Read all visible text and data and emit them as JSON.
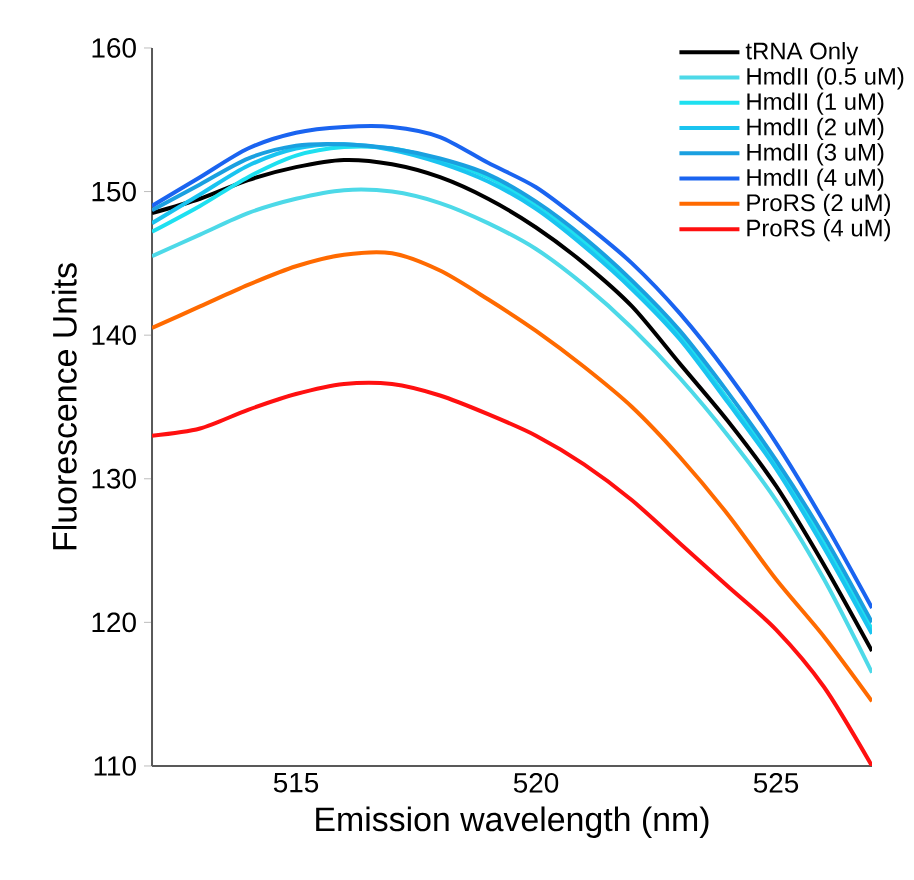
{
  "chart_data": {
    "type": "line",
    "xlabel": "Emission wavelength (nm)",
    "ylabel": "Fluorescence Units",
    "x": [
      512,
      513,
      514,
      515,
      516,
      517,
      518,
      519,
      520,
      521,
      522,
      523,
      524,
      525,
      526,
      527
    ],
    "xlim": [
      512,
      527
    ],
    "xticks": [
      515,
      520,
      525
    ],
    "ylim": [
      110,
      160
    ],
    "yticks": [
      110,
      120,
      130,
      140,
      150,
      160
    ],
    "grid": false,
    "legend": "top right",
    "marker": "none",
    "line_style": "solid",
    "series": [
      {
        "name": "tRNA Only",
        "color": "#000000",
        "values": [
          148.5,
          149.5,
          150.8,
          151.7,
          152.2,
          151.9,
          151,
          149.5,
          147.5,
          145,
          142,
          138,
          134,
          129.5,
          124,
          118
        ]
      },
      {
        "name": "HmdII (0.5 uM)",
        "color": "#4dd9e8",
        "values": [
          145.5,
          147,
          148.5,
          149.5,
          150.1,
          150,
          149.2,
          147.8,
          146,
          143.5,
          140.5,
          137,
          133,
          128.5,
          123,
          116.5
        ]
      },
      {
        "name": "HmdII (1 uM)",
        "color": "#1ee0f0",
        "values": [
          147.2,
          149,
          151,
          152.5,
          153.1,
          153,
          152.2,
          151,
          149,
          146.5,
          143.5,
          140,
          135.5,
          131,
          125.5,
          119.5
        ]
      },
      {
        "name": "HmdII (2 uM)",
        "color": "#1ac4f0",
        "values": [
          147.8,
          149.8,
          151.8,
          153,
          153.3,
          152.9,
          152,
          150.7,
          148.8,
          146.2,
          143.2,
          139.7,
          135.3,
          130.7,
          125.2,
          119.2
        ]
      },
      {
        "name": "HmdII (3 uM)",
        "color": "#1aa0e0",
        "values": [
          148.7,
          150.5,
          152.3,
          153.2,
          153.3,
          153,
          152.3,
          151.2,
          149.3,
          146.8,
          143.8,
          140.3,
          136,
          131.3,
          126,
          120
        ]
      },
      {
        "name": "HmdII (4 uM)",
        "color": "#1a64f0",
        "values": [
          149,
          151,
          153,
          154.1,
          154.5,
          154.5,
          153.8,
          152,
          150.3,
          147.8,
          145,
          141.5,
          137.3,
          132.5,
          127,
          121
        ]
      },
      {
        "name": "ProRS (2 uM)",
        "color": "#ff6a00",
        "values": [
          140.5,
          142,
          143.5,
          144.8,
          145.6,
          145.7,
          144.5,
          142.5,
          140.3,
          137.8,
          135,
          131.5,
          127.5,
          123,
          119,
          114.5
        ]
      },
      {
        "name": "ProRS (4 uM)",
        "color": "#ff1010",
        "values": [
          133,
          133.5,
          134.8,
          135.9,
          136.6,
          136.6,
          135.8,
          134.5,
          133,
          131,
          128.5,
          125.5,
          122.5,
          119.5,
          115.5,
          110
        ]
      }
    ]
  }
}
